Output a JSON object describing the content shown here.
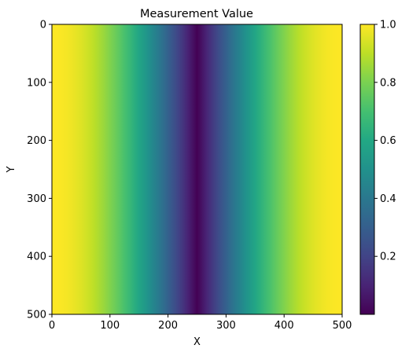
{
  "chart_data": {
    "type": "heatmap",
    "title": "Measurement Value",
    "xlabel": "X",
    "ylabel": "Y",
    "xlim": [
      0,
      500
    ],
    "ylim": [
      500,
      0
    ],
    "x_ticks": [
      0,
      100,
      200,
      300,
      400,
      500
    ],
    "y_ticks": [
      0,
      100,
      200,
      300,
      400,
      500
    ],
    "colormap": "viridis",
    "value_range": [
      0.0,
      1.0
    ],
    "colorbar_ticks": [
      0.2,
      0.4,
      0.6,
      0.8,
      1.0
    ],
    "colorbar_tick_labels": [
      "0.2",
      "0.4",
      "0.6",
      "0.8",
      "1.0"
    ],
    "field": {
      "varies_along": "x",
      "profile": "abs(cos(pi * x / 500))",
      "samples_x": [
        0,
        50,
        100,
        150,
        200,
        250,
        300,
        350,
        400,
        450,
        500
      ],
      "samples_value": [
        1.0,
        0.95,
        0.81,
        0.59,
        0.31,
        0.0,
        0.31,
        0.59,
        0.81,
        0.95,
        1.0
      ]
    },
    "grid": false
  }
}
